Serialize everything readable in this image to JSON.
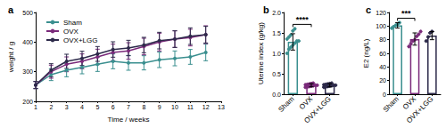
{
  "chart_data": [
    {
      "type": "line",
      "title": "a",
      "x_label": "Time / weeks",
      "y_label": "weight / g",
      "x": [
        1,
        2,
        3,
        4,
        5,
        6,
        7,
        8,
        9,
        10,
        11,
        12
      ],
      "xlim": [
        1,
        13
      ],
      "xticks": [
        1,
        2,
        3,
        4,
        5,
        6,
        7,
        8,
        9,
        10,
        11,
        12,
        13
      ],
      "ylim": [
        200,
        500
      ],
      "yticks": [
        200,
        300,
        400,
        500
      ],
      "grid": false,
      "legend": "upper left",
      "marker": "circle",
      "series": [
        {
          "name": "Sham",
          "color": "#3a8f8f",
          "values": [
            255,
            290,
            305,
            315,
            325,
            335,
            330,
            330,
            340,
            345,
            350,
            365
          ],
          "errors": [
            12,
            20,
            22,
            22,
            24,
            25,
            25,
            24,
            26,
            25,
            25,
            28
          ]
        },
        {
          "name": "OVX",
          "color": "#7a2a7a",
          "values": [
            255,
            300,
            325,
            335,
            350,
            365,
            370,
            385,
            400,
            410,
            415,
            425
          ],
          "errors": [
            12,
            22,
            25,
            25,
            26,
            28,
            28,
            28,
            30,
            28,
            28,
            30
          ]
        },
        {
          "name": "OVX+LGG",
          "color": "#2d2a4a",
          "values": [
            255,
            305,
            335,
            345,
            360,
            375,
            380,
            390,
            405,
            410,
            420,
            425
          ],
          "errors": [
            12,
            22,
            24,
            24,
            25,
            26,
            26,
            26,
            28,
            28,
            28,
            28
          ]
        }
      ]
    },
    {
      "type": "bar",
      "title": "b",
      "y_label": "Uterine index (g/kg)",
      "categories": [
        "Sham",
        "OVX",
        "OVX+LGG"
      ],
      "values": [
        1.28,
        0.22,
        0.22
      ],
      "errors": [
        0.2,
        0.04,
        0.04
      ],
      "points": [
        [
          1.0,
          1.1,
          1.15,
          1.2,
          1.25,
          1.3,
          1.3,
          1.35,
          1.4,
          1.45,
          1.55,
          1.6
        ],
        [
          0.17,
          0.18,
          0.19,
          0.2,
          0.21,
          0.22,
          0.22,
          0.23,
          0.24,
          0.25,
          0.26,
          0.27
        ],
        [
          0.17,
          0.18,
          0.19,
          0.2,
          0.21,
          0.22,
          0.22,
          0.23,
          0.24,
          0.25,
          0.26,
          0.27
        ]
      ],
      "colors": [
        "#3a8f8f",
        "#7a2a7a",
        "#2d2a4a"
      ],
      "ylim": [
        0,
        2
      ],
      "yticks": [
        {
          "value": 0,
          "label": "0.0"
        },
        {
          "value": 0.5,
          "label": "0.5"
        },
        {
          "value": 1,
          "label": "1.0"
        },
        {
          "value": 1.5,
          "label": "1.5"
        },
        {
          "value": 2,
          "label": "2.0"
        }
      ],
      "grid": false,
      "annotations": [
        {
          "text": "****",
          "between": [
            "Sham",
            "OVX"
          ]
        }
      ]
    },
    {
      "type": "bar",
      "title": "c",
      "y_label": "E2 (ng/L)",
      "categories": [
        "Sham",
        "OVX",
        "OVX+LGG"
      ],
      "values": [
        101,
        81,
        86
      ],
      "errors": [
        4,
        9,
        6
      ],
      "points": [
        [
          97,
          99,
          101,
          103,
          105
        ],
        [
          70,
          74,
          78,
          80,
          85,
          88,
          92
        ],
        [
          78,
          84,
          90,
          92
        ]
      ],
      "colors": [
        "#3a8f8f",
        "#7a2a7a",
        "#2d2a4a"
      ],
      "ylim": [
        0,
        120
      ],
      "yticks": [
        0,
        20,
        40,
        60,
        80,
        100,
        120
      ],
      "grid": false,
      "annotations": [
        {
          "text": "***",
          "between": [
            "Sham",
            "OVX"
          ]
        }
      ]
    }
  ]
}
